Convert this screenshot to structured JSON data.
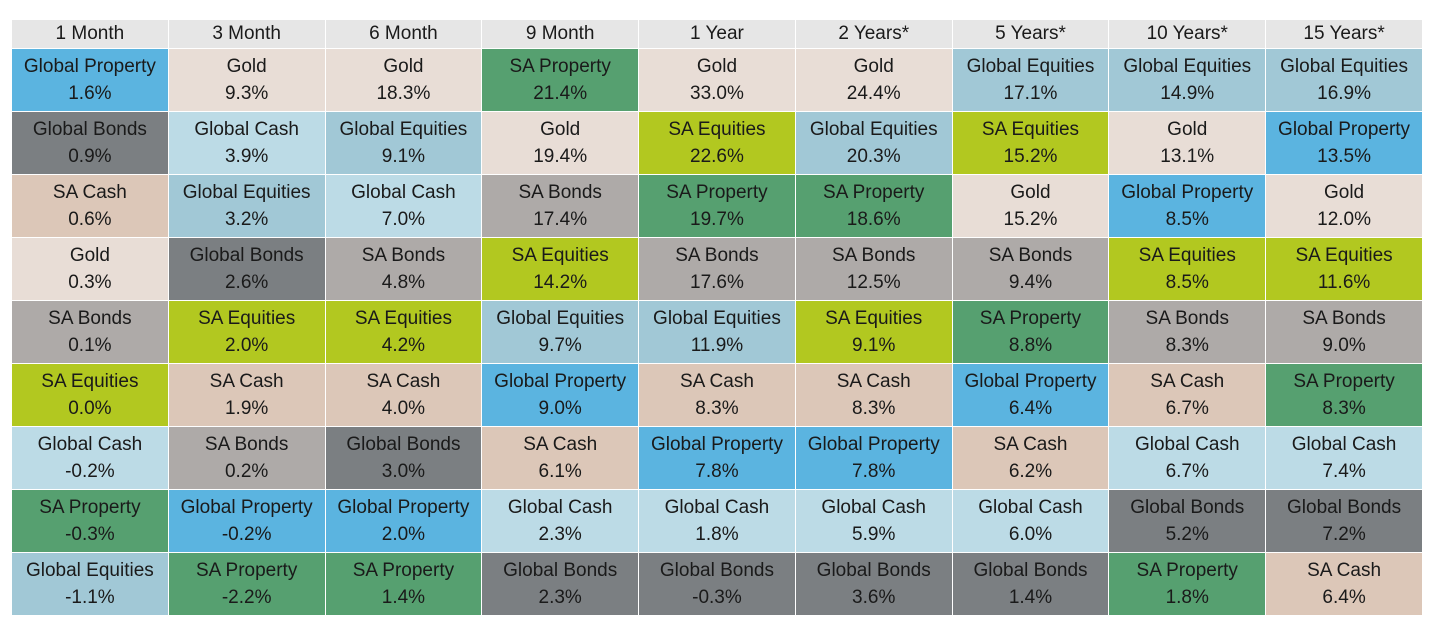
{
  "chart_data": {
    "type": "table",
    "columns": [
      "1 Month",
      "3 Month",
      "6 Month",
      "9 Month",
      "1 Year",
      "2 Years*",
      "5 Years*",
      "10 Years*",
      "15 Years*"
    ],
    "colors": {
      "Global Property": "#5bb4e0",
      "Global Bonds": "#7b7f82",
      "SA Cash": "#dcc7b8",
      "Gold": "#e8ddd6",
      "SA Bonds": "#aeaaa8",
      "SA Equities": "#b2c820",
      "Global Cash": "#bcdbe6",
      "SA Property": "#56a070",
      "Global Equities": "#a1c8d6"
    },
    "rows": [
      [
        {
          "name": "Global Property",
          "value": "1.6%"
        },
        {
          "name": "Gold",
          "value": "9.3%"
        },
        {
          "name": "Gold",
          "value": "18.3%"
        },
        {
          "name": "SA Property",
          "value": "21.4%"
        },
        {
          "name": "Gold",
          "value": "33.0%"
        },
        {
          "name": "Gold",
          "value": "24.4%"
        },
        {
          "name": "Global Equities",
          "value": "17.1%"
        },
        {
          "name": "Global Equities",
          "value": "14.9%"
        },
        {
          "name": "Global Equities",
          "value": "16.9%"
        }
      ],
      [
        {
          "name": "Global Bonds",
          "value": "0.9%"
        },
        {
          "name": "Global Cash",
          "value": "3.9%"
        },
        {
          "name": "Global Equities",
          "value": "9.1%"
        },
        {
          "name": "Gold",
          "value": "19.4%"
        },
        {
          "name": "SA Equities",
          "value": "22.6%"
        },
        {
          "name": "Global Equities",
          "value": "20.3%"
        },
        {
          "name": "SA Equities",
          "value": "15.2%"
        },
        {
          "name": "Gold",
          "value": "13.1%"
        },
        {
          "name": "Global Property",
          "value": "13.5%"
        }
      ],
      [
        {
          "name": "SA Cash",
          "value": "0.6%"
        },
        {
          "name": "Global Equities",
          "value": "3.2%"
        },
        {
          "name": "Global Cash",
          "value": "7.0%"
        },
        {
          "name": "SA Bonds",
          "value": "17.4%"
        },
        {
          "name": "SA Property",
          "value": "19.7%"
        },
        {
          "name": "SA Property",
          "value": "18.6%"
        },
        {
          "name": "Gold",
          "value": "15.2%"
        },
        {
          "name": "Global Property",
          "value": "8.5%"
        },
        {
          "name": "Gold",
          "value": "12.0%"
        }
      ],
      [
        {
          "name": "Gold",
          "value": "0.3%"
        },
        {
          "name": "Global Bonds",
          "value": "2.6%"
        },
        {
          "name": "SA Bonds",
          "value": "4.8%"
        },
        {
          "name": "SA Equities",
          "value": "14.2%"
        },
        {
          "name": "SA Bonds",
          "value": "17.6%"
        },
        {
          "name": "SA Bonds",
          "value": "12.5%"
        },
        {
          "name": "SA Bonds",
          "value": "9.4%"
        },
        {
          "name": "SA Equities",
          "value": "8.5%"
        },
        {
          "name": "SA Equities",
          "value": "11.6%"
        }
      ],
      [
        {
          "name": "SA Bonds",
          "value": "0.1%"
        },
        {
          "name": "SA Equities",
          "value": "2.0%"
        },
        {
          "name": "SA Equities",
          "value": "4.2%"
        },
        {
          "name": "Global Equities",
          "value": "9.7%"
        },
        {
          "name": "Global Equities",
          "value": "11.9%"
        },
        {
          "name": "SA Equities",
          "value": "9.1%"
        },
        {
          "name": "SA Property",
          "value": "8.8%"
        },
        {
          "name": "SA Bonds",
          "value": "8.3%"
        },
        {
          "name": "SA Bonds",
          "value": "9.0%"
        }
      ],
      [
        {
          "name": "SA Equities",
          "value": "0.0%"
        },
        {
          "name": "SA Cash",
          "value": "1.9%"
        },
        {
          "name": "SA Cash",
          "value": "4.0%"
        },
        {
          "name": "Global Property",
          "value": "9.0%"
        },
        {
          "name": "SA Cash",
          "value": "8.3%"
        },
        {
          "name": "SA Cash",
          "value": "8.3%"
        },
        {
          "name": "Global Property",
          "value": "6.4%"
        },
        {
          "name": "SA Cash",
          "value": "6.7%"
        },
        {
          "name": "SA Property",
          "value": "8.3%"
        }
      ],
      [
        {
          "name": "Global Cash",
          "value": "-0.2%"
        },
        {
          "name": "SA Bonds",
          "value": "0.2%"
        },
        {
          "name": "Global Bonds",
          "value": "3.0%"
        },
        {
          "name": "SA Cash",
          "value": "6.1%"
        },
        {
          "name": "Global Property",
          "value": "7.8%"
        },
        {
          "name": "Global Property",
          "value": "7.8%"
        },
        {
          "name": "SA Cash",
          "value": "6.2%"
        },
        {
          "name": "Global Cash",
          "value": "6.7%"
        },
        {
          "name": "Global Cash",
          "value": "7.4%"
        }
      ],
      [
        {
          "name": "SA Property",
          "value": "-0.3%"
        },
        {
          "name": "Global Property",
          "value": "-0.2%"
        },
        {
          "name": "Global Property",
          "value": "2.0%"
        },
        {
          "name": "Global Cash",
          "value": "2.3%"
        },
        {
          "name": "Global Cash",
          "value": "1.8%"
        },
        {
          "name": "Global Cash",
          "value": "5.9%"
        },
        {
          "name": "Global Cash",
          "value": "6.0%"
        },
        {
          "name": "Global Bonds",
          "value": "5.2%"
        },
        {
          "name": "Global Bonds",
          "value": "7.2%"
        }
      ],
      [
        {
          "name": "Global Equities",
          "value": "-1.1%"
        },
        {
          "name": "SA Property",
          "value": "-2.2%"
        },
        {
          "name": "SA Property",
          "value": "1.4%"
        },
        {
          "name": "Global Bonds",
          "value": "2.3%"
        },
        {
          "name": "Global Bonds",
          "value": "-0.3%"
        },
        {
          "name": "Global Bonds",
          "value": "3.6%"
        },
        {
          "name": "Global Bonds",
          "value": "1.4%"
        },
        {
          "name": "SA Property",
          "value": "1.8%"
        },
        {
          "name": "SA Cash",
          "value": "6.4%"
        }
      ]
    ]
  }
}
